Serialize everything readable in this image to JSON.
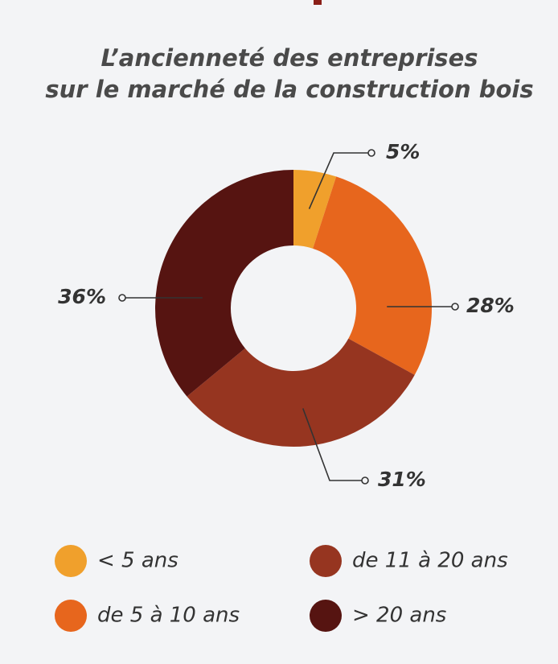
{
  "chart_data": {
    "type": "donut",
    "title": [
      "L’ancienneté des entreprises",
      "sur le marché de la construction bois"
    ],
    "categories": [
      "< 5 ans",
      "de 5 à 10 ans",
      "de 11 à 20 ans",
      "> 20 ans"
    ],
    "values": [
      5,
      28,
      31,
      36
    ],
    "value_labels": [
      "5%",
      "28%",
      "31%",
      "36%"
    ],
    "colors": [
      "#f0a02c",
      "#e7661d",
      "#963520",
      "#561411"
    ],
    "legend": "bottom"
  }
}
